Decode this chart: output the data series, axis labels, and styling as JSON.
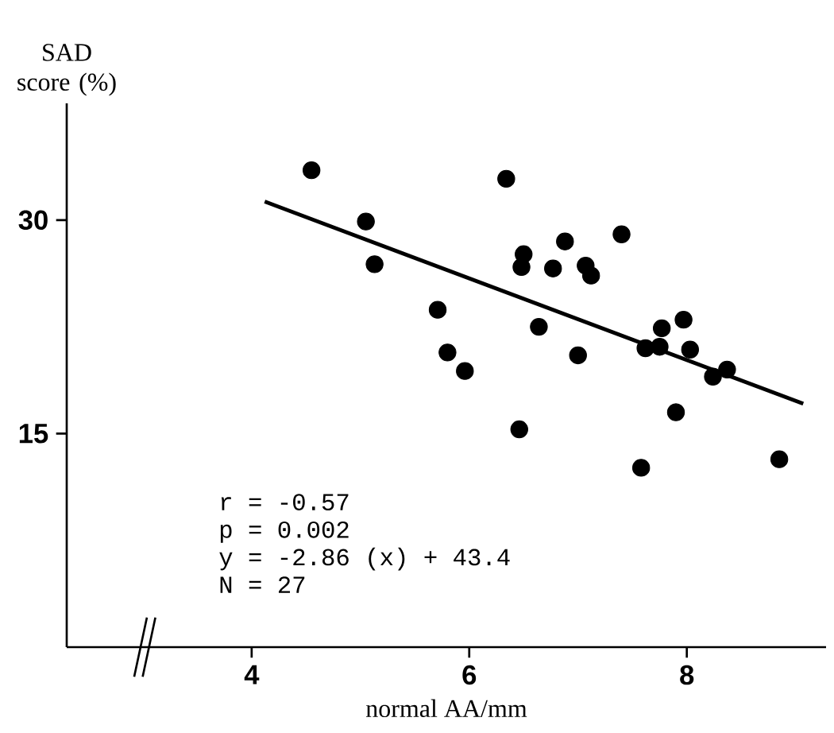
{
  "chart_data": {
    "type": "scatter",
    "xlabel": "normal AA/mm",
    "ylabel": "SAD score (%)",
    "xlim": [
      2.3,
      9.28
    ],
    "ylim": [
      0,
      38.2
    ],
    "xticks": [
      4,
      6,
      8
    ],
    "yticks": [
      15,
      30
    ],
    "grid": false,
    "series": [
      {
        "color": "#000000",
        "marker": "circle",
        "x": [
          4.55,
          6.34,
          5.05,
          5.13,
          6.5,
          6.48,
          6.77,
          5.71,
          6.64,
          5.8,
          5.96,
          6.46,
          6.88,
          7.4,
          7.07,
          7.12,
          7.0,
          7.77,
          7.97,
          7.62,
          7.75,
          8.03,
          8.37,
          8.24,
          7.9,
          7.58,
          8.85
        ],
        "values": [
          33.5,
          32.9,
          29.9,
          26.9,
          27.6,
          26.7,
          26.6,
          23.7,
          22.5,
          20.7,
          19.4,
          15.3,
          28.5,
          29.0,
          26.8,
          26.1,
          20.5,
          22.4,
          23.0,
          21.0,
          21.1,
          20.9,
          19.5,
          19.0,
          16.5,
          12.6,
          13.2
        ]
      },
      {
        "type": "line",
        "color": "#000000",
        "x": [
          4.12,
          9.07
        ],
        "values": [
          31.3,
          17.1
        ],
        "line_style": "solid",
        "marker": "none"
      }
    ],
    "annotations": [
      "r = -0.57",
      "p = 0.002",
      "y = -2.86 (x) + 43.4",
      "N = 27"
    ]
  }
}
